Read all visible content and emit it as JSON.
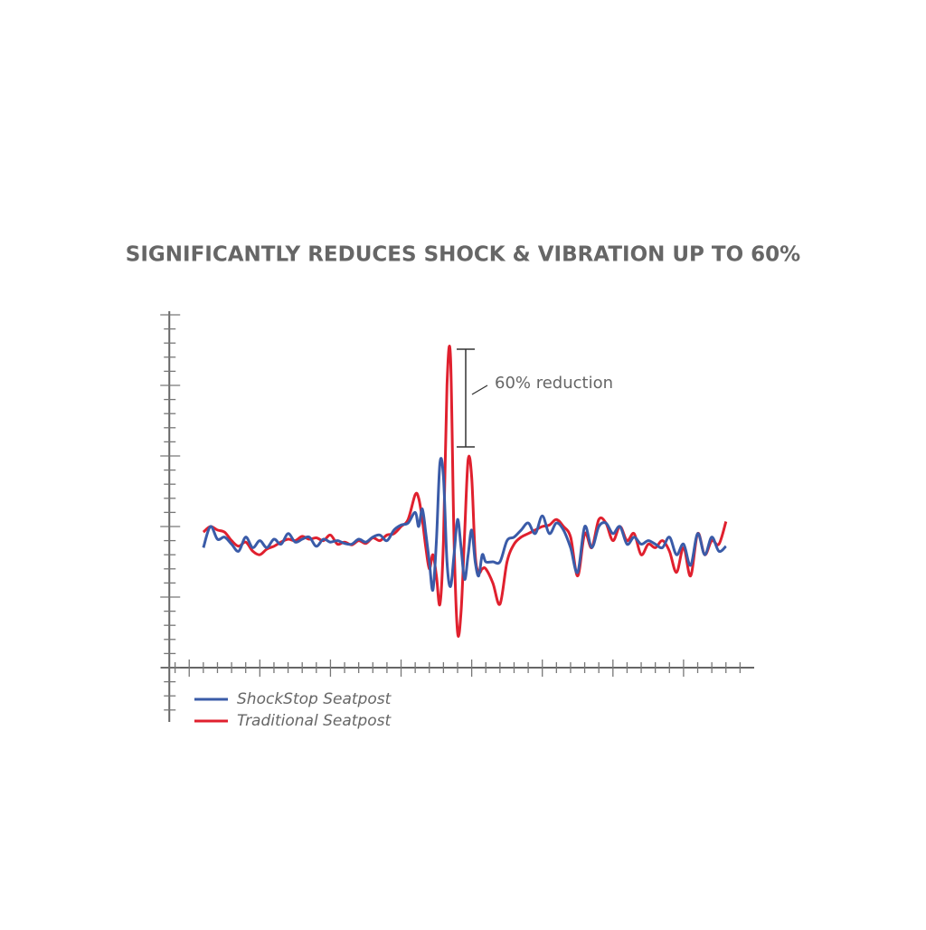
{
  "chart_data": {
    "type": "line",
    "title": "SIGNIFICANTLY REDUCES SHOCK & VIBRATION UP TO 60%",
    "annotation": "60% reduction",
    "xlim": [
      -0.4,
      8.0
    ],
    "ylim": [
      0,
      5
    ],
    "x": [
      0.2,
      0.3,
      0.4,
      0.5,
      0.6,
      0.7,
      0.8,
      0.9,
      1.0,
      1.1,
      1.2,
      1.3,
      1.4,
      1.5,
      1.6,
      1.7,
      1.8,
      1.9,
      2.0,
      2.1,
      2.2,
      2.3,
      2.4,
      2.5,
      2.6,
      2.7,
      2.8,
      2.9,
      3.0,
      3.1,
      3.2,
      3.25,
      3.3,
      3.35,
      3.4,
      3.45,
      3.5,
      3.55,
      3.6,
      3.65,
      3.7,
      3.75,
      3.8,
      3.85,
      3.9,
      3.95,
      4.0,
      4.05,
      4.1,
      4.15,
      4.2,
      4.3,
      4.4,
      4.5,
      4.6,
      4.7,
      4.8,
      4.9,
      5.0,
      5.1,
      5.2,
      5.3,
      5.4,
      5.5,
      5.6,
      5.7,
      5.8,
      5.9,
      6.0,
      6.1,
      6.2,
      6.3,
      6.4,
      6.5,
      6.6,
      6.7,
      6.8,
      6.9,
      7.0,
      7.1,
      7.2,
      7.3,
      7.4,
      7.5,
      7.6
    ],
    "series": [
      {
        "name": "ShockStop Seatpost",
        "color": "#3a5ba8",
        "values": [
          1.7,
          2.0,
          1.82,
          1.85,
          1.75,
          1.65,
          1.85,
          1.7,
          1.8,
          1.7,
          1.82,
          1.75,
          1.9,
          1.78,
          1.82,
          1.85,
          1.72,
          1.82,
          1.78,
          1.8,
          1.76,
          1.75,
          1.82,
          1.78,
          1.85,
          1.88,
          1.8,
          1.95,
          2.02,
          2.05,
          2.2,
          2.0,
          2.25,
          1.9,
          1.5,
          1.1,
          1.8,
          2.9,
          2.7,
          1.5,
          1.15,
          1.6,
          2.1,
          1.7,
          1.25,
          1.6,
          1.95,
          1.5,
          1.3,
          1.6,
          1.5,
          1.5,
          1.5,
          1.8,
          1.85,
          1.95,
          2.05,
          1.9,
          2.15,
          1.9,
          2.05,
          1.95,
          1.7,
          1.35,
          2.0,
          1.7,
          2.0,
          2.05,
          1.9,
          2.0,
          1.75,
          1.85,
          1.75,
          1.8,
          1.75,
          1.7,
          1.85,
          1.6,
          1.75,
          1.45,
          1.9,
          1.6,
          1.85,
          1.65,
          1.72
        ]
      },
      {
        "name": "Traditional Seatpost",
        "color": "#e0202e",
        "values": [
          1.92,
          2.0,
          1.95,
          1.92,
          1.8,
          1.72,
          1.78,
          1.65,
          1.6,
          1.68,
          1.72,
          1.78,
          1.82,
          1.8,
          1.86,
          1.82,
          1.84,
          1.8,
          1.88,
          1.75,
          1.78,
          1.74,
          1.8,
          1.76,
          1.84,
          1.8,
          1.88,
          1.9,
          2.0,
          2.1,
          2.45,
          2.4,
          2.1,
          1.7,
          1.4,
          1.6,
          1.3,
          0.9,
          1.8,
          4.0,
          4.4,
          1.8,
          0.5,
          0.8,
          1.9,
          2.95,
          2.7,
          1.6,
          1.35,
          1.4,
          1.4,
          1.2,
          0.9,
          1.5,
          1.75,
          1.85,
          1.9,
          1.95,
          2.0,
          2.02,
          2.1,
          2.0,
          1.85,
          1.3,
          1.9,
          1.7,
          2.1,
          2.05,
          1.8,
          2.0,
          1.8,
          1.9,
          1.6,
          1.75,
          1.7,
          1.8,
          1.65,
          1.35,
          1.7,
          1.3,
          1.9,
          1.6,
          1.8,
          1.75,
          2.07
        ]
      }
    ]
  }
}
